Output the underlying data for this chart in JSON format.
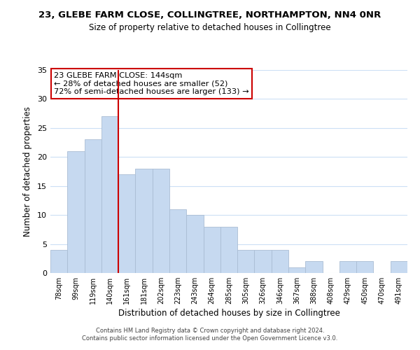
{
  "title1": "23, GLEBE FARM CLOSE, COLLINGTREE, NORTHAMPTON, NN4 0NR",
  "title2": "Size of property relative to detached houses in Collingtree",
  "xlabel": "Distribution of detached houses by size in Collingtree",
  "ylabel": "Number of detached properties",
  "bar_labels": [
    "78sqm",
    "99sqm",
    "119sqm",
    "140sqm",
    "161sqm",
    "181sqm",
    "202sqm",
    "223sqm",
    "243sqm",
    "264sqm",
    "285sqm",
    "305sqm",
    "326sqm",
    "346sqm",
    "367sqm",
    "388sqm",
    "408sqm",
    "429sqm",
    "450sqm",
    "470sqm",
    "491sqm"
  ],
  "bar_values": [
    4,
    21,
    23,
    27,
    17,
    18,
    18,
    11,
    10,
    8,
    8,
    4,
    4,
    4,
    1,
    2,
    0,
    2,
    2,
    0,
    2
  ],
  "bar_color": "#c6d9f0",
  "bar_edge_color": "#aabdd4",
  "vline_color": "#cc0000",
  "ylim": [
    0,
    35
  ],
  "yticks": [
    0,
    5,
    10,
    15,
    20,
    25,
    30,
    35
  ],
  "annotation_title": "23 GLEBE FARM CLOSE: 144sqm",
  "annotation_line1": "← 28% of detached houses are smaller (52)",
  "annotation_line2": "72% of semi-detached houses are larger (133) →",
  "annotation_box_color": "#ffffff",
  "annotation_border_color": "#cc0000",
  "footer1": "Contains HM Land Registry data © Crown copyright and database right 2024.",
  "footer2": "Contains public sector information licensed under the Open Government Licence v3.0.",
  "background_color": "#ffffff",
  "grid_color": "#ccdff5"
}
